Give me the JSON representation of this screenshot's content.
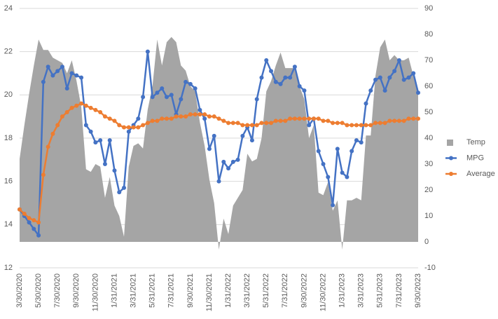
{
  "chart_data": {
    "type": "line",
    "categories": [
      "3/30/2020",
      null,
      null,
      null,
      "5/30/2020",
      null,
      null,
      null,
      "7/30/2020",
      null,
      null,
      null,
      "9/30/2020",
      null,
      null,
      null,
      "11/30/2020",
      null,
      null,
      null,
      "1/31/2021",
      null,
      null,
      null,
      "3/31/2021",
      null,
      null,
      null,
      "5/31/2021",
      null,
      null,
      null,
      "7/31/2021",
      null,
      null,
      null,
      "9/30/2021",
      null,
      null,
      null,
      "11/30/2021",
      null,
      null,
      null,
      "1/31/2022",
      null,
      null,
      null,
      "3/31/2022",
      null,
      null,
      null,
      "5/31/2022",
      null,
      null,
      null,
      "7/31/2022",
      null,
      null,
      null,
      "9/30/2022",
      null,
      null,
      null,
      "11/30/2022",
      null,
      null,
      null,
      "1/31/2023",
      null,
      null,
      null,
      "3/31/2023",
      null,
      null,
      null,
      "5/31/2023",
      null,
      null,
      null,
      "7/31/2023",
      null,
      null,
      null,
      "9/30/2023"
    ],
    "series": [
      {
        "name": "Temp",
        "type": "area",
        "axis": "y2",
        "color": "#a5a5a5",
        "values": [
          32,
          45,
          57,
          68,
          78,
          74,
          74,
          71,
          70,
          69,
          65,
          70,
          62,
          52,
          28,
          27,
          30,
          29,
          17,
          25,
          14,
          10,
          2,
          29,
          37,
          38,
          36,
          51,
          60,
          78,
          68,
          77,
          79,
          77,
          68,
          66,
          60,
          58,
          46,
          37,
          24,
          15,
          -3,
          9,
          3,
          14,
          17,
          20,
          34,
          31,
          32,
          40,
          58,
          62,
          68,
          73,
          67,
          67,
          67,
          60,
          55,
          40,
          45,
          19,
          18,
          23,
          12,
          16,
          -3,
          16,
          16,
          17,
          16,
          41,
          41,
          64,
          75,
          78,
          70,
          72,
          70,
          70,
          71,
          64,
          59
        ]
      },
      {
        "name": "MPG",
        "type": "line",
        "color": "#4472c4",
        "values": [
          14.7,
          14.4,
          14.1,
          13.8,
          13.5,
          20.6,
          21.3,
          20.9,
          21.1,
          21.3,
          20.3,
          21.0,
          20.9,
          20.8,
          18.6,
          18.3,
          17.8,
          17.9,
          16.8,
          17.9,
          16.5,
          15.5,
          15.7,
          18.3,
          18.6,
          18.9,
          19.9,
          22.0,
          19.9,
          20.1,
          20.3,
          19.9,
          20.0,
          19.1,
          19.8,
          20.6,
          20.5,
          20.3,
          19.3,
          18.9,
          17.5,
          18.1,
          16.0,
          16.9,
          16.6,
          16.9,
          17.0,
          18.1,
          18.5,
          17.9,
          19.8,
          20.8,
          21.6,
          21.1,
          20.6,
          20.5,
          20.8,
          20.8,
          21.3,
          20.4,
          20.2,
          18.6,
          18.9,
          17.4,
          16.8,
          16.2,
          14.9,
          17.5,
          16.4,
          16.2,
          17.4,
          17.9,
          17.8,
          19.6,
          20.2,
          20.7,
          20.8,
          20.2,
          20.8,
          21.1,
          21.6,
          20.7,
          20.8,
          21.0,
          20.1
        ]
      },
      {
        "name": "Average",
        "type": "line",
        "color": "#ed7d31",
        "values": [
          14.7,
          14.5,
          14.3,
          14.2,
          14.1,
          16.3,
          17.6,
          18.2,
          18.6,
          19.0,
          19.2,
          19.4,
          19.5,
          19.6,
          19.5,
          19.4,
          19.3,
          19.2,
          19.0,
          18.9,
          18.8,
          18.6,
          18.5,
          18.5,
          18.5,
          18.5,
          18.6,
          18.7,
          18.8,
          18.8,
          18.9,
          18.9,
          18.9,
          19.0,
          19.0,
          19.0,
          19.1,
          19.1,
          19.1,
          19.1,
          19.0,
          19.0,
          18.9,
          18.8,
          18.7,
          18.7,
          18.7,
          18.6,
          18.6,
          18.6,
          18.6,
          18.7,
          18.7,
          18.7,
          18.8,
          18.8,
          18.8,
          18.9,
          18.9,
          18.9,
          18.9,
          18.9,
          18.9,
          18.9,
          18.8,
          18.8,
          18.7,
          18.7,
          18.7,
          18.6,
          18.6,
          18.6,
          18.6,
          18.6,
          18.6,
          18.7,
          18.7,
          18.7,
          18.8,
          18.8,
          18.8,
          18.8,
          18.9,
          18.9,
          18.9
        ]
      }
    ],
    "ylim": [
      12,
      24
    ],
    "yticks": [
      12,
      14,
      16,
      18,
      20,
      22,
      24
    ],
    "y2lim": [
      -10,
      90
    ],
    "y2ticks": [
      -10,
      0,
      10,
      20,
      30,
      40,
      50,
      60,
      70,
      80,
      90
    ],
    "grid": true,
    "legend": "right"
  }
}
